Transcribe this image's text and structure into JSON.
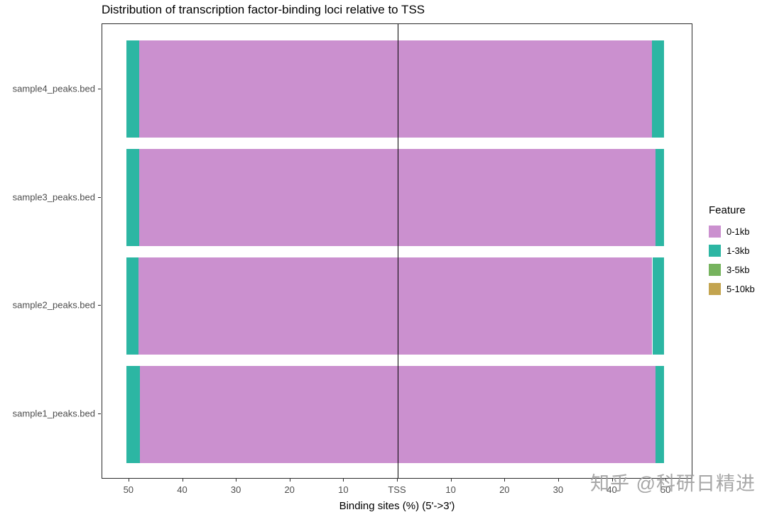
{
  "watermark": "知乎 @科研日精进",
  "chart_data": {
    "type": "bar",
    "variant": "horizontal-stacked-diverging",
    "title": "Distribution of transcription factor-binding loci relative to TSS",
    "xlabel": "Binding sites (%) (5'->3')",
    "x_range": [
      -55,
      55
    ],
    "x_ticks": [
      {
        "value": -50,
        "label": "50"
      },
      {
        "value": -40,
        "label": "40"
      },
      {
        "value": -30,
        "label": "30"
      },
      {
        "value": -20,
        "label": "20"
      },
      {
        "value": -10,
        "label": "10"
      },
      {
        "value": 0,
        "label": "TSS"
      },
      {
        "value": 10,
        "label": "10"
      },
      {
        "value": 20,
        "label": "20"
      },
      {
        "value": 30,
        "label": "30"
      },
      {
        "value": 40,
        "label": "40"
      },
      {
        "value": 50,
        "label": "50"
      }
    ],
    "tss_line_at": 0,
    "grid": false,
    "legend": {
      "title": "Feature",
      "position": "right",
      "entries": [
        {
          "label": "0-1kb",
          "color": "#cb90cf"
        },
        {
          "label": "1-3kb",
          "color": "#2cb6a3"
        },
        {
          "label": "3-5kb",
          "color": "#76b35e"
        },
        {
          "label": "5-10kb",
          "color": "#c3a44f"
        }
      ]
    },
    "rows": [
      {
        "label": "sample4_peaks.bed",
        "segments": [
          {
            "feature": "1-3kb",
            "from": -50.5,
            "to": -48.1
          },
          {
            "feature": "0-1kb",
            "from": -48.1,
            "to": 47.3
          },
          {
            "feature": "1-3kb",
            "from": 47.3,
            "to": 49.6
          }
        ]
      },
      {
        "label": "sample3_peaks.bed",
        "segments": [
          {
            "feature": "1-3kb",
            "from": -50.5,
            "to": -48.1
          },
          {
            "feature": "0-1kb",
            "from": -48.1,
            "to": 48.0
          },
          {
            "feature": "1-3kb",
            "from": 48.0,
            "to": 49.6
          }
        ]
      },
      {
        "label": "sample2_peaks.bed",
        "segments": [
          {
            "feature": "1-3kb",
            "from": -50.5,
            "to": -48.3
          },
          {
            "feature": "0-1kb",
            "from": -48.3,
            "to": 47.4
          },
          {
            "feature": "1-3kb",
            "from": 47.4,
            "to": 49.6
          }
        ]
      },
      {
        "label": "sample1_peaks.bed",
        "segments": [
          {
            "feature": "1-3kb",
            "from": -50.5,
            "to": -48.0
          },
          {
            "feature": "0-1kb",
            "from": -48.0,
            "to": 48.0
          },
          {
            "feature": "1-3kb",
            "from": 48.0,
            "to": 49.6
          }
        ]
      }
    ]
  }
}
